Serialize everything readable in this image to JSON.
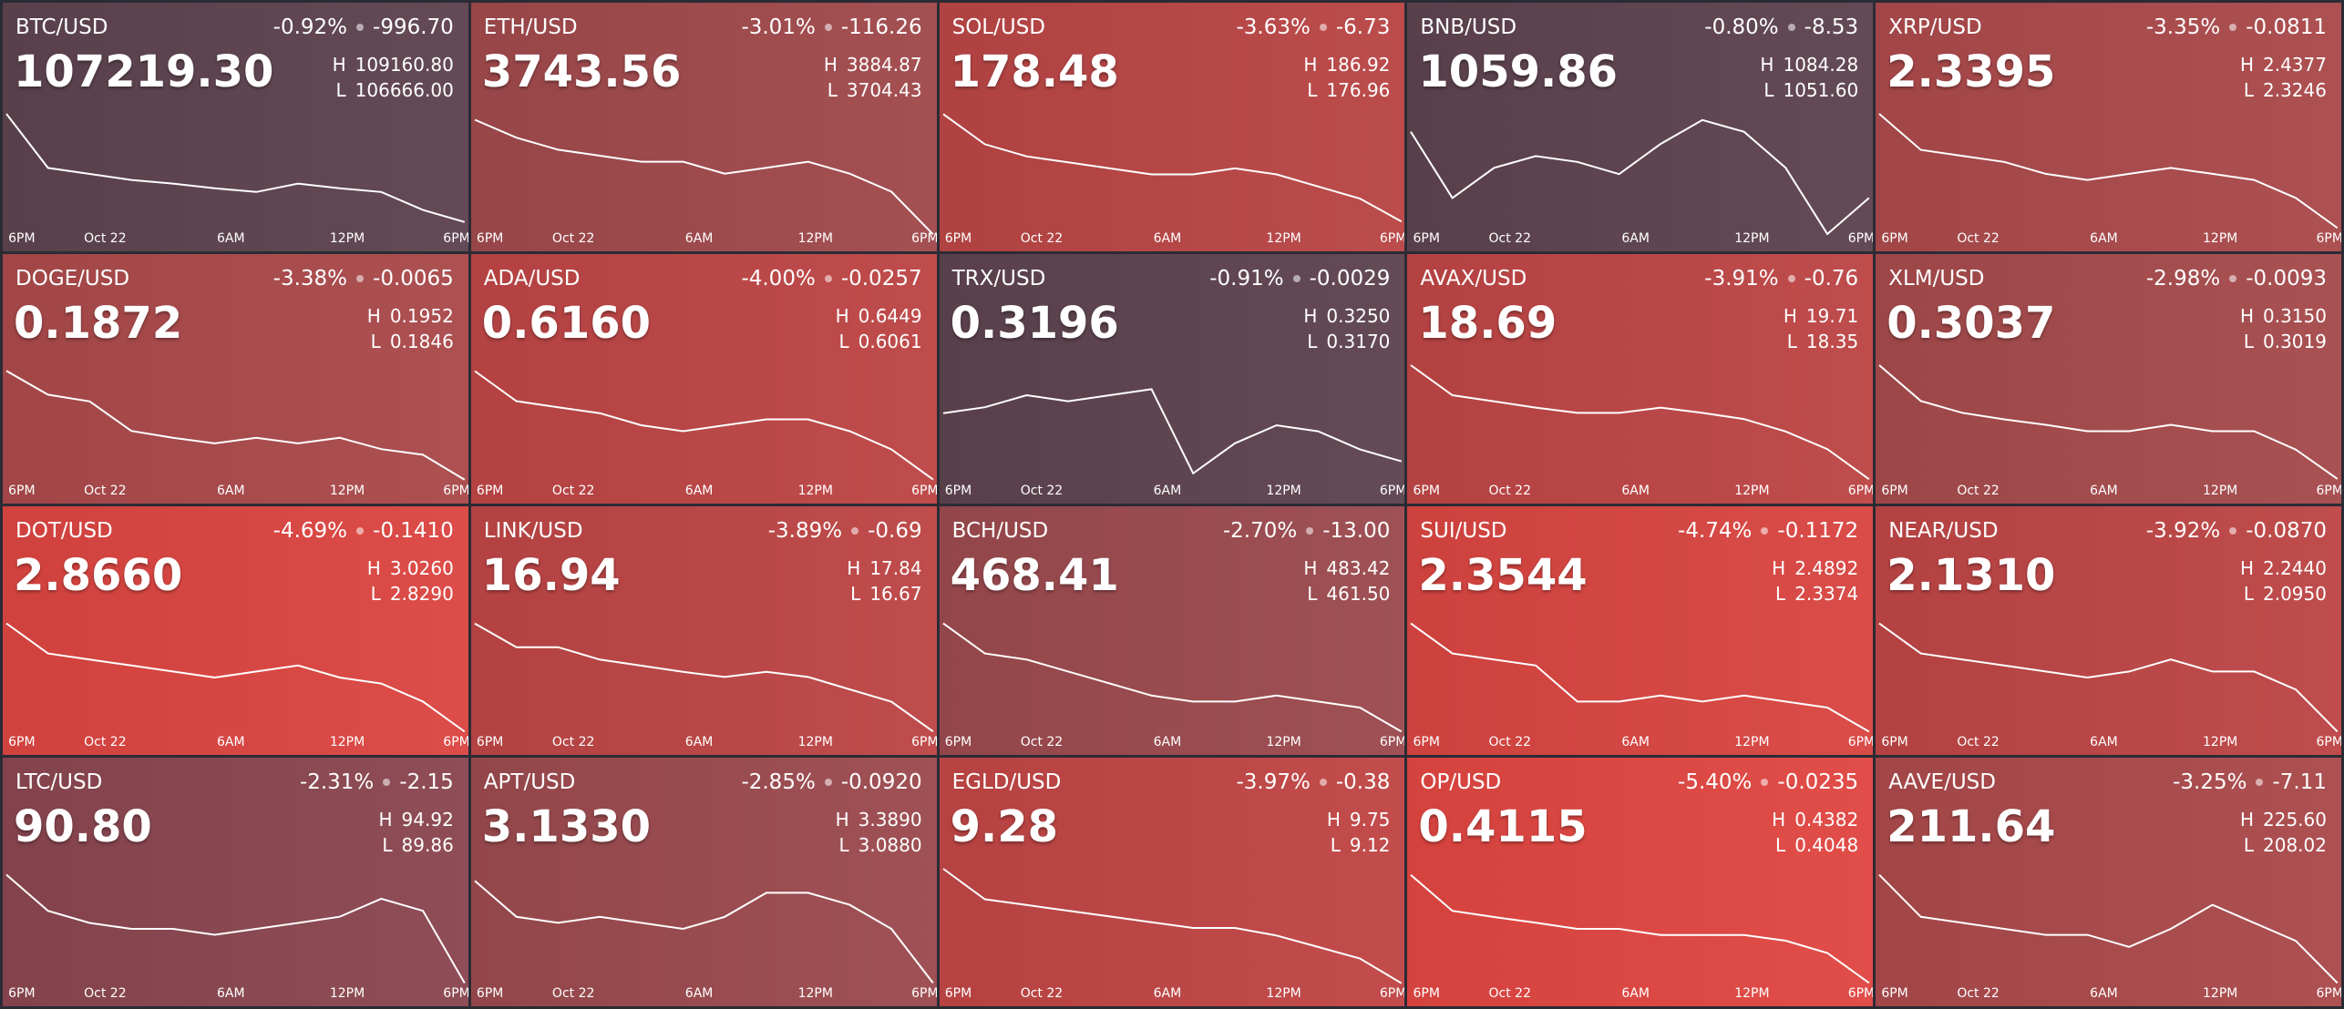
{
  "high_prefix": "H",
  "low_prefix": "L",
  "time_labels": [
    "6PM",
    "Oct 22",
    "6AM",
    "12PM",
    "6PM"
  ],
  "tiles": [
    {
      "pair": "BTC/USD",
      "change_pct": "-0.92%",
      "change": "-996.70",
      "price": "107219.30",
      "high": "109160.80",
      "low": "106666.00",
      "color": "#5d434f",
      "sparkline": [
        109160,
        108038,
        107913,
        107789,
        107714,
        107614,
        107539,
        107714,
        107614,
        107539,
        107165,
        106915
      ]
    },
    {
      "pair": "ETH/USD",
      "change_pct": "-3.01%",
      "change": "-116.26",
      "price": "3743.56",
      "high": "3884.87",
      "low": "3704.43",
      "color": "#a0494c",
      "sparkline": [
        3876,
        3849,
        3831,
        3822,
        3813,
        3813,
        3795,
        3804,
        3813,
        3795,
        3768,
        3704
      ]
    },
    {
      "pair": "SOL/USD",
      "change_pct": "-3.63%",
      "change": "-6.73",
      "price": "178.48",
      "high": "186.92",
      "low": "176.96",
      "color": "#b94545",
      "sparkline": [
        186.9,
        184.4,
        183.4,
        182.9,
        182.4,
        181.9,
        181.9,
        182.4,
        181.9,
        180.9,
        179.9,
        178.0
      ]
    },
    {
      "pair": "BNB/USD",
      "change_pct": "-0.80%",
      "change": "-8.53",
      "price": "1059.86",
      "high": "1084.28",
      "low": "1051.60",
      "color": "#5d434f",
      "sparkline": [
        1079.4,
        1061.4,
        1069.6,
        1072.8,
        1071.2,
        1067.9,
        1076.1,
        1082.6,
        1079.4,
        1069.6,
        1051.6,
        1061.4
      ]
    },
    {
      "pair": "XRP/USD",
      "change_pct": "-3.35%",
      "change": "-0.0811",
      "price": "2.3395",
      "high": "2.4377",
      "low": "2.3246",
      "color": "#aa494b",
      "sparkline": [
        2.4377,
        2.4038,
        2.3981,
        2.3925,
        2.3812,
        2.3755,
        2.3812,
        2.3868,
        2.3812,
        2.3755,
        2.3585,
        2.3303
      ]
    },
    {
      "pair": "DOGE/USD",
      "change_pct": "-3.38%",
      "change": "-0.0065",
      "price": "0.1872",
      "high": "0.1952",
      "low": "0.1846",
      "color": "#aa494b",
      "sparkline": [
        0.1947,
        0.1926,
        0.192,
        0.1894,
        0.1888,
        0.1883,
        0.1888,
        0.1883,
        0.1888,
        0.1878,
        0.1873,
        0.1851
      ]
    },
    {
      "pair": "ADA/USD",
      "change_pct": "-4.00%",
      "change": "-0.0257",
      "price": "0.6160",
      "high": "0.6449",
      "low": "0.6061",
      "color": "#bd4545",
      "sparkline": [
        0.643,
        0.6333,
        0.6313,
        0.6294,
        0.6255,
        0.6236,
        0.6255,
        0.6274,
        0.6274,
        0.6236,
        0.6177,
        0.608
      ]
    },
    {
      "pair": "TRX/USD",
      "change_pct": "-0.91%",
      "change": "-0.0029",
      "price": "0.3196",
      "high": "0.3250",
      "low": "0.3170",
      "color": "#5d434f",
      "sparkline": [
        0.3218,
        0.3222,
        0.323,
        0.3226,
        0.323,
        0.3234,
        0.3178,
        0.3198,
        0.321,
        0.3206,
        0.3194,
        0.3186
      ]
    },
    {
      "pair": "AVAX/USD",
      "change_pct": "-3.91%",
      "change": "-0.76",
      "price": "18.69",
      "high": "19.71",
      "low": "18.35",
      "color": "#bd4545",
      "sparkline": [
        19.71,
        19.37,
        19.3,
        19.23,
        19.17,
        19.17,
        19.23,
        19.17,
        19.1,
        18.96,
        18.76,
        18.42
      ]
    },
    {
      "pair": "XLM/USD",
      "change_pct": "-2.98%",
      "change": "-0.0093",
      "price": "0.3037",
      "high": "0.3150",
      "low": "0.3019",
      "color": "#a54a4c",
      "sparkline": [
        0.315,
        0.3111,
        0.3098,
        0.3091,
        0.3085,
        0.3078,
        0.3078,
        0.3085,
        0.3078,
        0.3078,
        0.3058,
        0.3026
      ]
    },
    {
      "pair": "DOT/USD",
      "change_pct": "-4.69%",
      "change": "-0.1410",
      "price": "2.8660",
      "high": "3.0260",
      "low": "2.8290",
      "color": "#db4541",
      "sparkline": [
        3.0162,
        2.9669,
        2.9571,
        2.9472,
        2.9374,
        2.9275,
        2.9374,
        2.9472,
        2.9275,
        2.9177,
        2.8881,
        2.8389
      ]
    },
    {
      "pair": "LINK/USD",
      "change_pct": "-3.89%",
      "change": "-0.69",
      "price": "16.94",
      "high": "17.84",
      "low": "16.67",
      "color": "#bd4545",
      "sparkline": [
        17.78,
        17.55,
        17.55,
        17.43,
        17.37,
        17.31,
        17.26,
        17.31,
        17.26,
        17.14,
        17.02,
        16.73
      ]
    },
    {
      "pair": "BCH/USD",
      "change_pct": "-2.70%",
      "change": "-13.00",
      "price": "468.41",
      "high": "483.42",
      "low": "461.50",
      "color": "#9b4a4e",
      "sparkline": [
        482.32,
        476.84,
        475.75,
        473.56,
        471.36,
        469.17,
        468.08,
        468.08,
        469.17,
        468.08,
        466.98,
        462.6
      ]
    },
    {
      "pair": "SUI/USD",
      "change_pct": "-4.74%",
      "change": "-0.1172",
      "price": "2.3544",
      "high": "2.4892",
      "low": "2.3374",
      "color": "#d84541",
      "sparkline": [
        2.4816,
        2.4437,
        2.4361,
        2.4285,
        2.3829,
        2.3829,
        2.3905,
        2.3829,
        2.3905,
        2.3829,
        2.3754,
        2.345
      ]
    },
    {
      "pair": "NEAR/USD",
      "change_pct": "-3.92%",
      "change": "-0.0870",
      "price": "2.1310",
      "high": "2.2440",
      "low": "2.0950",
      "color": "#bd4545",
      "sparkline": [
        2.2366,
        2.1993,
        2.1919,
        2.1844,
        2.177,
        2.1695,
        2.177,
        2.1919,
        2.177,
        2.177,
        2.1546,
        2.1025
      ]
    },
    {
      "pair": "LTC/USD",
      "change_pct": "-2.31%",
      "change": "-2.15",
      "price": "90.80",
      "high": "94.92",
      "low": "89.86",
      "color": "#8a4650",
      "sparkline": [
        94.67,
        93.15,
        92.64,
        92.39,
        92.39,
        92.14,
        92.39,
        92.64,
        92.9,
        93.66,
        93.15,
        90.11
      ]
    },
    {
      "pair": "APT/USD",
      "change_pct": "-2.85%",
      "change": "-0.0920",
      "price": "3.1330",
      "high": "3.3890",
      "low": "3.0880",
      "color": "#9b4a4e",
      "sparkline": [
        3.3589,
        3.2686,
        3.2536,
        3.2686,
        3.2536,
        3.2385,
        3.2686,
        3.3288,
        3.3288,
        3.2987,
        3.2385,
        3.1031
      ]
    },
    {
      "pair": "EGLD/USD",
      "change_pct": "-3.97%",
      "change": "-0.38",
      "price": "9.28",
      "high": "9.75",
      "low": "9.12",
      "color": "#c04545",
      "sparkline": [
        9.75,
        9.59,
        9.56,
        9.53,
        9.5,
        9.47,
        9.44,
        9.44,
        9.4,
        9.34,
        9.28,
        9.15
      ]
    },
    {
      "pair": "OP/USD",
      "change_pct": "-5.40%",
      "change": "-0.0235",
      "price": "0.4115",
      "high": "0.4382",
      "low": "0.4048",
      "color": "#e04641",
      "sparkline": [
        0.4365,
        0.4265,
        0.4248,
        0.4232,
        0.4215,
        0.4215,
        0.4198,
        0.4198,
        0.4198,
        0.4182,
        0.4148,
        0.4065
      ]
    },
    {
      "pair": "AAVE/USD",
      "change_pct": "-3.25%",
      "change": "-7.11",
      "price": "211.64",
      "high": "225.60",
      "low": "208.02",
      "color": "#aa494b",
      "sparkline": [
        224.72,
        218.57,
        217.69,
        216.81,
        215.93,
        215.93,
        214.17,
        216.81,
        220.33,
        217.69,
        215.05,
        208.9
      ]
    }
  ]
}
